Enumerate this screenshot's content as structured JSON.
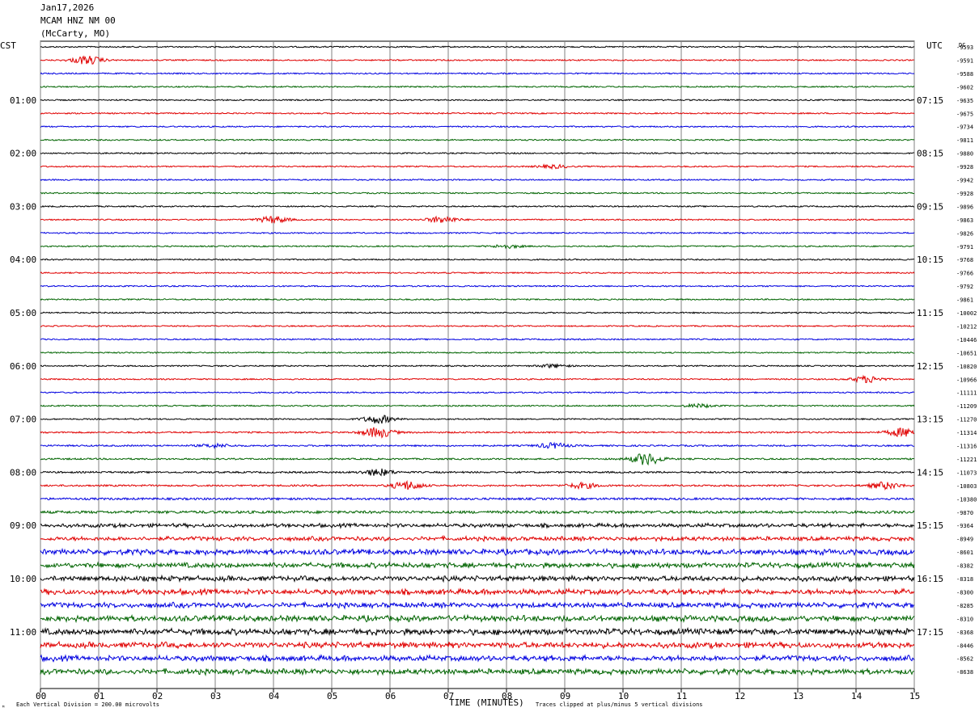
{
  "header": {
    "date": "Jan17,2026",
    "station": "MCAM HNZ NM 00",
    "location": "(McCarty, MO)"
  },
  "chart_data": {
    "type": "line",
    "title": "MCAM HNZ NM 00",
    "left_timezone": "CST",
    "right_timezone": "UTC",
    "dc_label": "DC",
    "xlabel": "TIME (MINUTES)",
    "x_ticks": [
      "00",
      "01",
      "02",
      "03",
      "04",
      "05",
      "06",
      "07",
      "08",
      "09",
      "10",
      "11",
      "12",
      "13",
      "14",
      "15"
    ],
    "xlim": [
      0,
      15
    ],
    "left_hour_labels": [
      "01:00",
      "02:00",
      "03:00",
      "04:00",
      "05:00",
      "06:00",
      "07:00",
      "08:00",
      "09:00",
      "10:00",
      "11:00"
    ],
    "right_hour_labels": [
      "07:15",
      "08:15",
      "09:15",
      "10:15",
      "11:15",
      "12:15",
      "13:15",
      "14:15",
      "15:15",
      "16:15",
      "17:15"
    ],
    "trace_colors": [
      "#000000",
      "#e00000",
      "#0000e0",
      "#006400"
    ],
    "dc_offsets": [
      -9593,
      -9591,
      -9588,
      -9602,
      -9635,
      -9675,
      -9734,
      -9811,
      -9880,
      -9928,
      -9942,
      -9928,
      -9896,
      -9863,
      -9826,
      -9791,
      -9768,
      -9766,
      -9792,
      -9861,
      -10002,
      -10212,
      -10446,
      -10651,
      -10820,
      -10966,
      -11111,
      -11209,
      -11270,
      -11314,
      -11316,
      -11221,
      -11073,
      -10803,
      -10380,
      -9870,
      -9364,
      -8949,
      -8601,
      -8382,
      -8318,
      -8300,
      -8285,
      -8310,
      -8368,
      -8446,
      -8562,
      -8638
    ],
    "trace_amplitude_level": [
      1,
      1,
      1,
      1,
      1,
      1,
      1,
      1,
      1,
      1,
      1,
      1,
      1,
      1,
      1,
      1,
      1,
      1,
      1,
      1,
      1,
      1,
      1,
      1,
      1,
      1,
      1,
      1,
      1,
      1.2,
      1.2,
      1.2,
      1.3,
      1.3,
      1.6,
      2,
      2.4,
      2.6,
      3.4,
      3.2,
      3.2,
      3.4,
      3.2,
      3.6,
      3.8,
      3.6,
      3.4,
      3.4
    ],
    "events": [
      {
        "trace": 1,
        "minute": 0.8,
        "strength": 5
      },
      {
        "trace": 9,
        "minute": 8.8,
        "strength": 2
      },
      {
        "trace": 13,
        "minute": 4.0,
        "strength": 4
      },
      {
        "trace": 13,
        "minute": 6.9,
        "strength": 4
      },
      {
        "trace": 15,
        "minute": 8.0,
        "strength": 2
      },
      {
        "trace": 24,
        "minute": 8.8,
        "strength": 2
      },
      {
        "trace": 25,
        "minute": 14.2,
        "strength": 4
      },
      {
        "trace": 27,
        "minute": 11.3,
        "strength": 2
      },
      {
        "trace": 28,
        "minute": 5.8,
        "strength": 5
      },
      {
        "trace": 29,
        "minute": 5.8,
        "strength": 6
      },
      {
        "trace": 29,
        "minute": 14.8,
        "strength": 5
      },
      {
        "trace": 30,
        "minute": 3.0,
        "strength": 2
      },
      {
        "trace": 30,
        "minute": 8.8,
        "strength": 3
      },
      {
        "trace": 31,
        "minute": 10.4,
        "strength": 7
      },
      {
        "trace": 32,
        "minute": 5.8,
        "strength": 4
      },
      {
        "trace": 33,
        "minute": 6.3,
        "strength": 5
      },
      {
        "trace": 33,
        "minute": 9.3,
        "strength": 3
      },
      {
        "trace": 33,
        "minute": 14.5,
        "strength": 4
      }
    ]
  },
  "footer": {
    "vertical_division_note": "Each Vertical Division =  200.00 microvolts",
    "clip_note": "Traces clipped at plus/minus 5 vertical divisions",
    "corner_mark": "ᴹ"
  }
}
